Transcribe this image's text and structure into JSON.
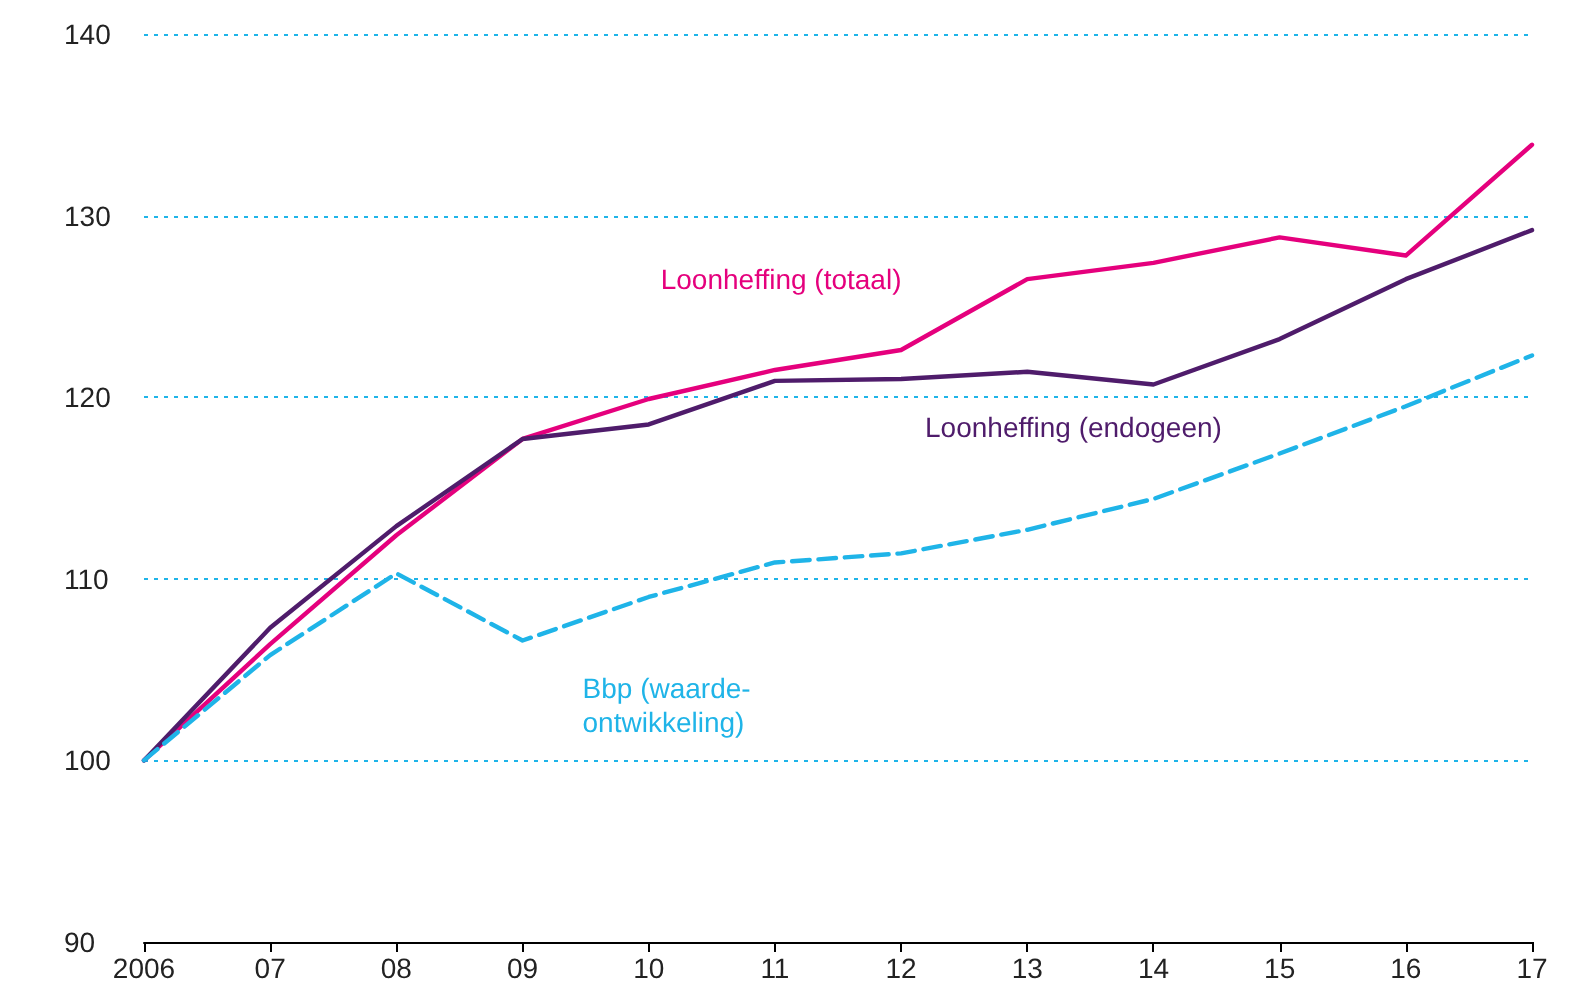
{
  "chart_data": {
    "type": "line",
    "categories": [
      "2006",
      "07",
      "08",
      "09",
      "10",
      "11",
      "12",
      "13",
      "14",
      "15",
      "16",
      "17"
    ],
    "series": [
      {
        "name": "Loonheffing (totaal)",
        "color": "#e5007d",
        "line_style": "solid",
        "values": [
          100,
          106.4,
          112.4,
          117.7,
          119.9,
          121.5,
          122.6,
          126.5,
          127.4,
          128.8,
          127.8,
          133.9
        ]
      },
      {
        "name": "Loonheffing (endogeen)",
        "color": "#4f1c6b",
        "line_style": "solid",
        "values": [
          100,
          107.3,
          112.9,
          117.7,
          118.5,
          120.9,
          121.0,
          121.4,
          120.7,
          123.2,
          126.5,
          129.2
        ]
      },
      {
        "name": "Bbp (waarde-\nontwikkeling)",
        "color": "#1fb4e8",
        "line_style": "dashed",
        "values": [
          100,
          105.8,
          110.3,
          106.6,
          109.0,
          110.9,
          111.4,
          112.7,
          114.4,
          116.9,
          119.5,
          122.3
        ]
      }
    ],
    "ylim": [
      90,
      140
    ],
    "yticks": [
      90,
      100,
      110,
      120,
      130,
      140
    ],
    "grid": "y",
    "legend": false,
    "marker": "none"
  }
}
